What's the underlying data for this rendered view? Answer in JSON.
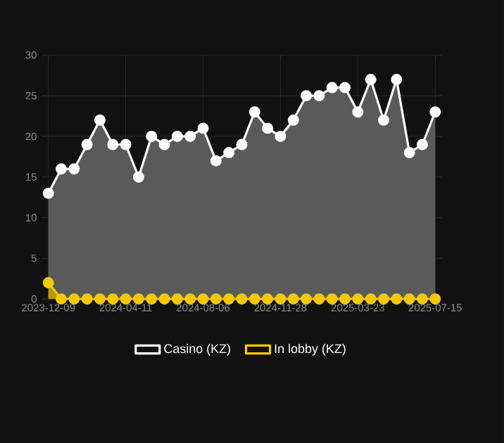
{
  "chart_data": {
    "type": "area",
    "categories": [
      "2023-12-09",
      null,
      null,
      null,
      null,
      null,
      "2024-04-11",
      null,
      null,
      null,
      null,
      null,
      "2024-08-06",
      null,
      null,
      null,
      null,
      null,
      "2024-11-28",
      null,
      null,
      null,
      null,
      null,
      "2025-03-23",
      null,
      null,
      null,
      null,
      null,
      "2025-07-15"
    ],
    "series": [
      {
        "name": "In lobby (KZ)",
        "color": "#f5c800",
        "values": [
          2,
          0,
          0,
          0,
          0,
          0,
          0,
          0,
          0,
          0,
          0,
          0,
          0,
          0,
          0,
          0,
          0,
          0,
          0,
          0,
          0,
          0,
          0,
          0,
          0,
          0,
          0,
          0,
          0,
          0,
          0
        ]
      },
      {
        "name": "Casino (KZ)",
        "color": "#ffffff",
        "values": [
          13,
          16,
          16,
          19,
          22,
          19,
          19,
          15,
          20,
          19,
          20,
          20,
          21,
          17,
          18,
          19,
          23,
          21,
          20,
          22,
          25,
          25,
          26,
          26,
          23,
          27,
          22,
          27,
          18,
          19,
          23
        ]
      }
    ],
    "ylim": [
      0,
      30
    ],
    "yticks": [
      0,
      5,
      10,
      15,
      20,
      25,
      30
    ],
    "grid": true,
    "legend": "bottom",
    "marker": "circle"
  }
}
